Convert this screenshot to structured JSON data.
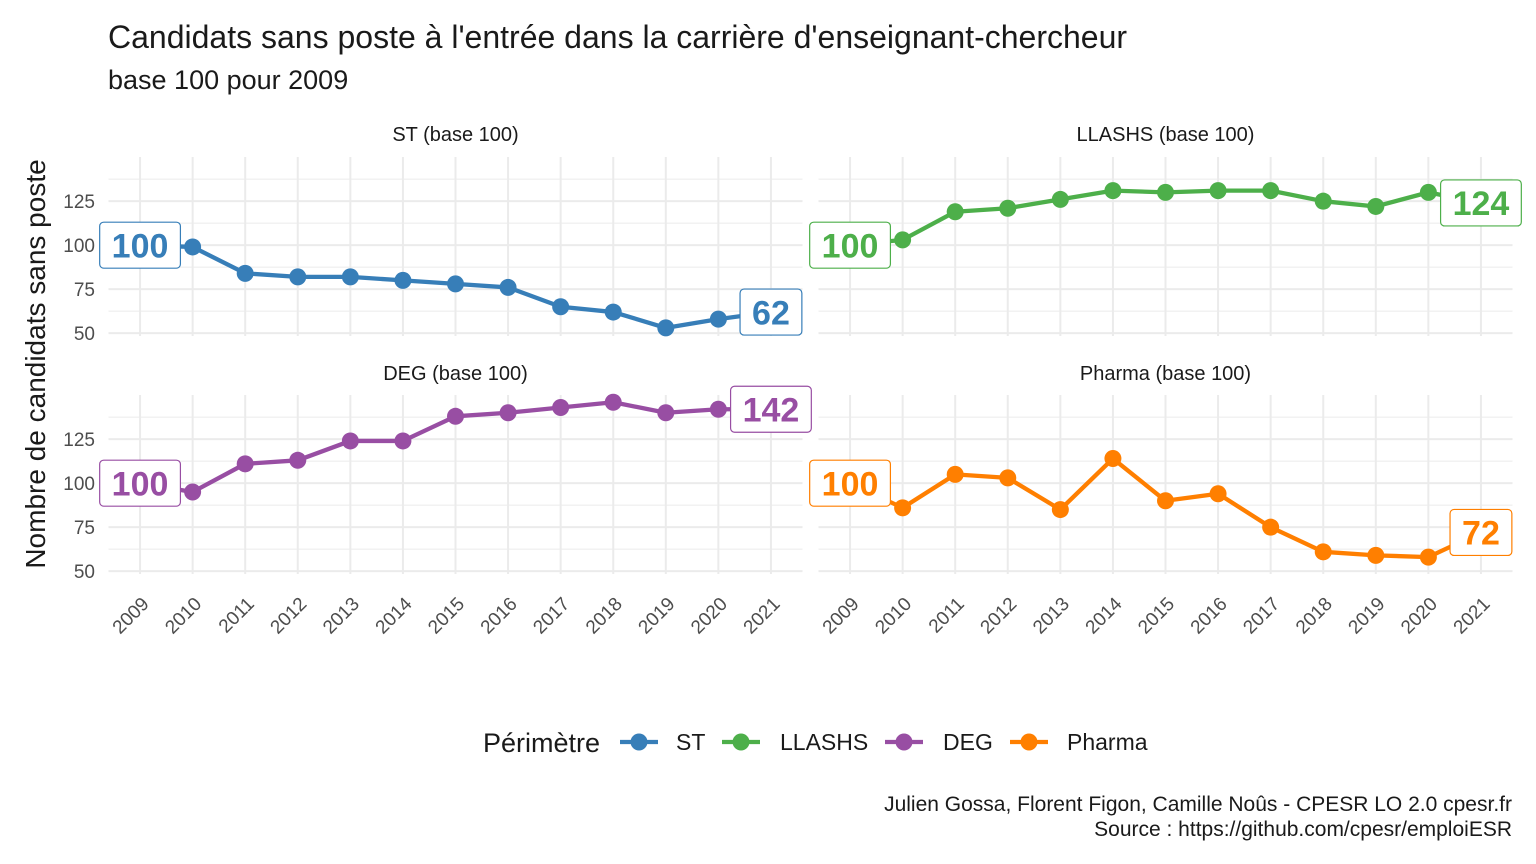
{
  "chart_data": {
    "type": "line",
    "title": "Candidats sans poste à l'entrée dans la carrière d'enseignant-chercheur",
    "subtitle": "base 100 pour 2009",
    "ylabel": "Nombre de candidats sans poste",
    "x": [
      2009,
      2010,
      2011,
      2012,
      2013,
      2014,
      2015,
      2016,
      2017,
      2018,
      2019,
      2020,
      2021
    ],
    "xlim": [
      2008.4,
      2021.6
    ],
    "ylim": [
      48.4,
      150.1
    ],
    "yticks": [
      50,
      75,
      100,
      125
    ],
    "grid": true,
    "legend": {
      "title": "Périmètre",
      "position": "bottom"
    },
    "series": [
      {
        "name": "ST",
        "panel_title": "ST (base 100)",
        "color": "#377EB8",
        "values": [
          100,
          99,
          84,
          82,
          82,
          80,
          78,
          76,
          65,
          62,
          53,
          58,
          62
        ]
      },
      {
        "name": "LLASHS",
        "panel_title": "LLASHS (base 100)",
        "color": "#4DAF4A",
        "values": [
          100,
          103,
          119,
          121,
          126,
          131,
          130,
          131,
          131,
          125,
          122,
          130,
          124
        ]
      },
      {
        "name": "DEG",
        "panel_title": "DEG (base 100)",
        "color": "#984EA3",
        "values": [
          100,
          95,
          111,
          113,
          124,
          124,
          138,
          140,
          143,
          146,
          140,
          142,
          142
        ]
      },
      {
        "name": "Pharma",
        "panel_title": "Pharma (base 100)",
        "color": "#FF7F00",
        "values": [
          100,
          86,
          105,
          103,
          85,
          114,
          90,
          94,
          75,
          61,
          59,
          58,
          72
        ]
      }
    ]
  },
  "caption": [
    "Julien Gossa, Florent Figon, Camille Noûs - CPESR LO 2.0 cpesr.fr",
    "Source : https://github.com/cpesr/emploiESR"
  ]
}
